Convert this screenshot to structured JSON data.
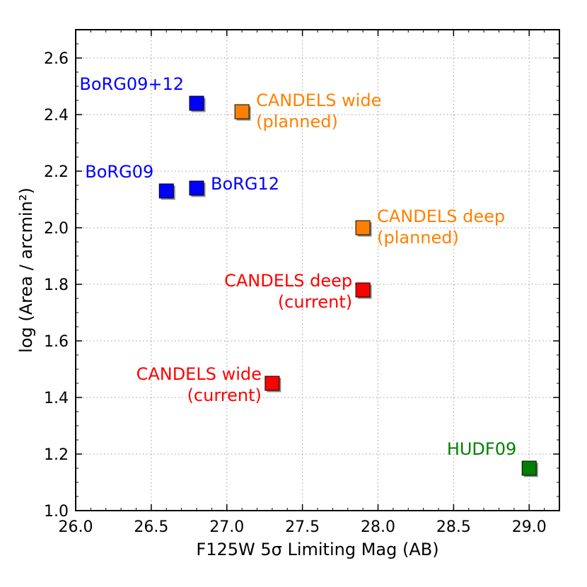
{
  "chart_data": {
    "type": "scatter",
    "title": "",
    "xlabel": "F125W 5σ Limiting Mag (AB)",
    "ylabel": "log (Area / arcmin²)",
    "xlim": [
      26.0,
      29.2
    ],
    "ylim": [
      1.0,
      2.7
    ],
    "xticks": [
      26.0,
      26.5,
      27.0,
      27.5,
      28.0,
      28.5,
      29.0
    ],
    "yticks": [
      1.0,
      1.2,
      1.4,
      1.6,
      1.8,
      2.0,
      2.2,
      2.4,
      2.6
    ],
    "grid": true,
    "marker": "square",
    "points": [
      {
        "name": "BoRG09+12",
        "x": 26.8,
        "y": 2.44,
        "color": "#0000ff",
        "label": [
          "BoRG09+12"
        ],
        "label_pos": "above-left"
      },
      {
        "name": "BoRG09",
        "x": 26.6,
        "y": 2.13,
        "color": "#0000ff",
        "label": [
          "BoRG09"
        ],
        "label_pos": "above-left"
      },
      {
        "name": "BoRG12",
        "x": 26.8,
        "y": 2.14,
        "color": "#0000ff",
        "label": [
          "BoRG12"
        ],
        "label_pos": "right"
      },
      {
        "name": "CANDELS wide (planned)",
        "x": 27.1,
        "y": 2.41,
        "color": "#ff8000",
        "label": [
          "CANDELS wide",
          "(planned)"
        ],
        "label_pos": "right"
      },
      {
        "name": "CANDELS deep (planned)",
        "x": 27.9,
        "y": 2.0,
        "color": "#ff8000",
        "label": [
          "CANDELS deep",
          "(planned)"
        ],
        "label_pos": "right"
      },
      {
        "name": "CANDELS deep (current)",
        "x": 27.9,
        "y": 1.78,
        "color": "#ff0000",
        "label": [
          "CANDELS deep",
          "(current)"
        ],
        "label_pos": "left"
      },
      {
        "name": "CANDELS wide (current)",
        "x": 27.3,
        "y": 1.45,
        "color": "#ff0000",
        "label": [
          "CANDELS wide",
          "(current)"
        ],
        "label_pos": "left"
      },
      {
        "name": "HUDF09",
        "x": 29.0,
        "y": 1.15,
        "color": "#008000",
        "label": [
          "HUDF09"
        ],
        "label_pos": "above-left"
      }
    ]
  }
}
